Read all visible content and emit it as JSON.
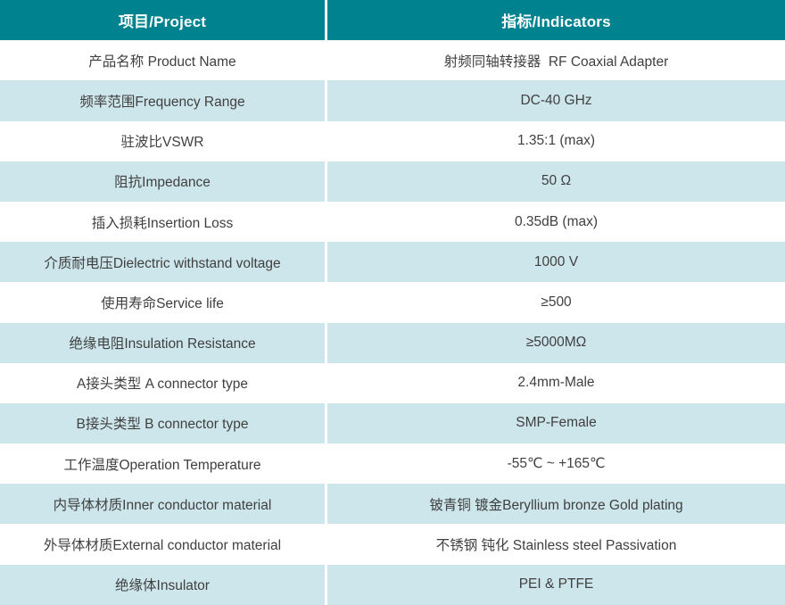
{
  "colors": {
    "header_bg": "#00828F",
    "header_text": "#FFFFFF",
    "row_bg": "#FFFFFF",
    "row_alt_bg": "#CDE6EB",
    "divider": "#FFFFFF",
    "text": "#404040"
  },
  "table": {
    "header": {
      "project": "项目/Project",
      "indicators": "指标/Indicators"
    },
    "rows": [
      {
        "label": "产品名称 Product Name",
        "value": "射频同轴转接器  RF Coaxial Adapter"
      },
      {
        "label": "频率范围Frequency Range",
        "value": "DC-40 GHz"
      },
      {
        "label": "驻波比VSWR",
        "value": "1.35:1 (max)"
      },
      {
        "label": "阻抗Impedance",
        "value": "50 Ω"
      },
      {
        "label": "插入损耗Insertion Loss",
        "value": "0.35dB (max)"
      },
      {
        "label": "介质耐电压Dielectric withstand voltage",
        "value": "1000 V"
      },
      {
        "label": "使用寿命Service life",
        "value": "≥500"
      },
      {
        "label": "绝缘电阻Insulation Resistance",
        "value": "≥5000MΩ"
      },
      {
        "label": "A接头类型 A connector type",
        "value": "2.4mm-Male"
      },
      {
        "label": "B接头类型 B connector type",
        "value": "SMP-Female"
      },
      {
        "label": "工作温度Operation Temperature",
        "value": "-55℃ ~ +165℃"
      },
      {
        "label": "内导体材质Inner conductor material",
        "value": "铍青铜 镀金Beryllium bronze Gold plating"
      },
      {
        "label": "外导体材质External conductor material",
        "value": "不锈钢 钝化 Stainless steel Passivation"
      },
      {
        "label": "绝缘体Insulator",
        "value": "PEI & PTFE"
      }
    ]
  }
}
